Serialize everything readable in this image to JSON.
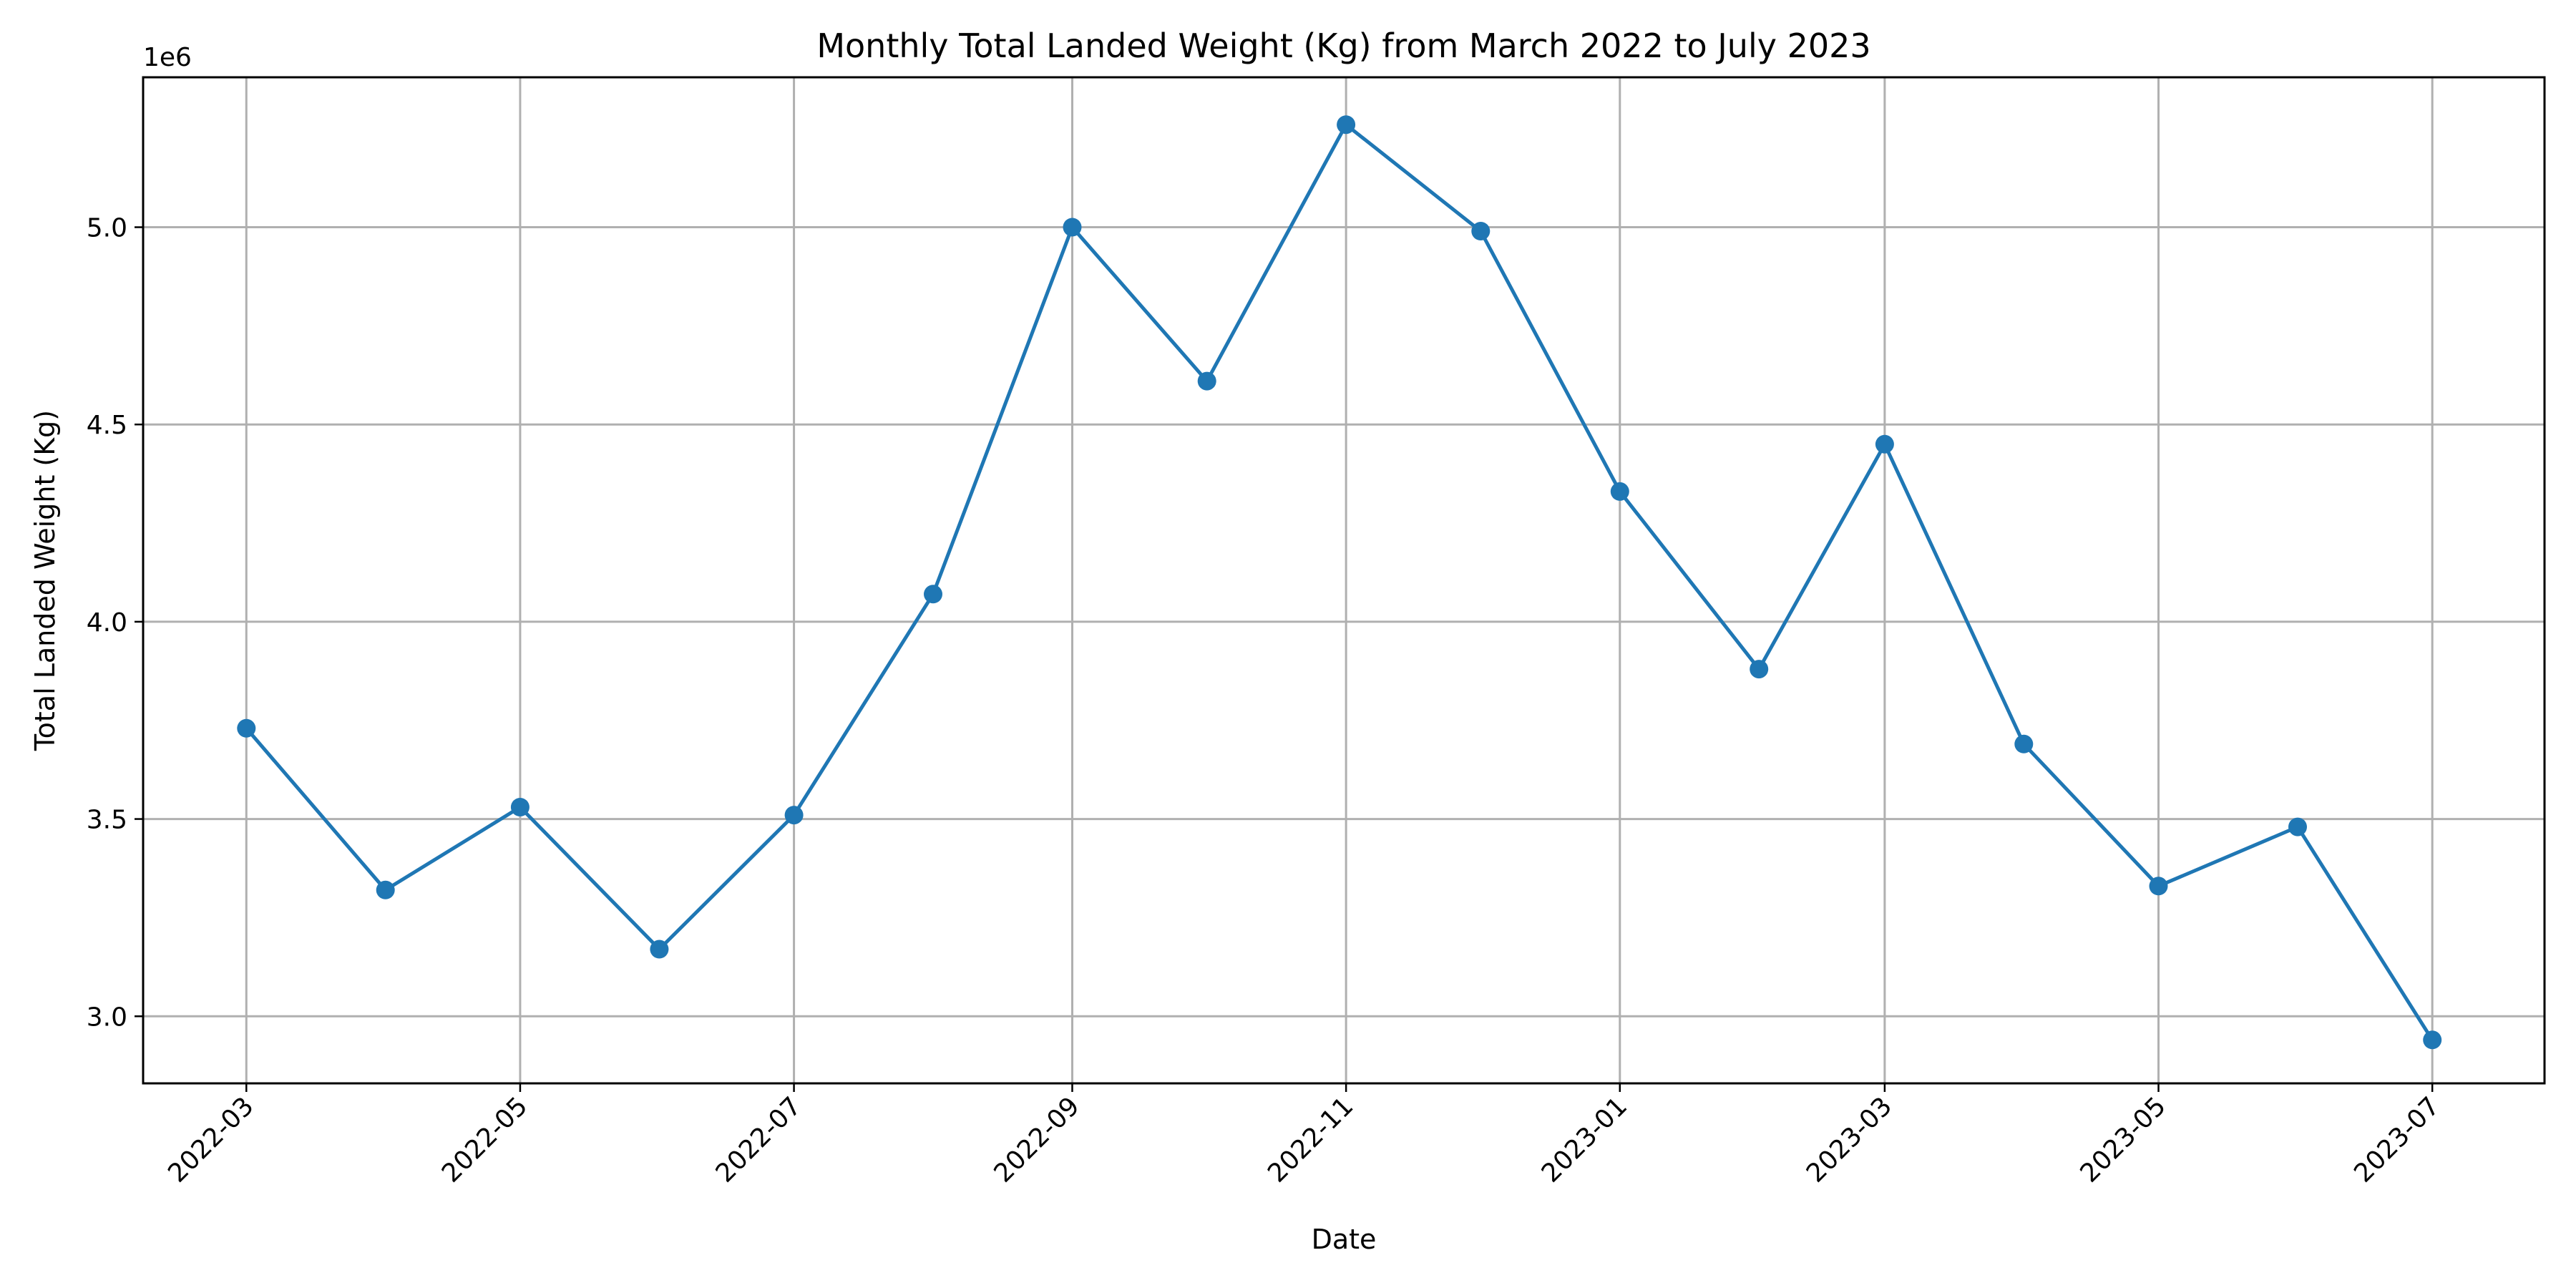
{
  "chart_data": {
    "type": "line",
    "title": "Monthly Total Landed Weight (Kg) from March 2022 to July 2023",
    "xlabel": "Date",
    "ylabel": "Total Landed Weight (Kg)",
    "y_offset_label": "1e6",
    "grid": true,
    "ylim": [
      2.83,
      5.38
    ],
    "xlim": [
      "2022-02-06",
      "2023-07-26"
    ],
    "x_ticks": [
      "2022-03",
      "2022-05",
      "2022-07",
      "2022-09",
      "2022-11",
      "2023-01",
      "2023-03",
      "2023-05",
      "2023-07"
    ],
    "y_ticks": [
      3.0,
      3.5,
      4.0,
      4.5,
      5.0
    ],
    "y_tick_labels": [
      "3.0",
      "3.5",
      "4.0",
      "4.5",
      "5.0"
    ],
    "series": [
      {
        "color": "#1f77b4",
        "marker": "circle",
        "x": [
          "2022-03-01",
          "2022-04-01",
          "2022-05-01",
          "2022-06-01",
          "2022-07-01",
          "2022-08-01",
          "2022-09-01",
          "2022-10-01",
          "2022-11-01",
          "2022-12-01",
          "2023-01-01",
          "2023-02-01",
          "2023-03-01",
          "2023-04-01",
          "2023-05-01",
          "2023-06-01",
          "2023-07-01"
        ],
        "y": [
          3.73,
          3.32,
          3.53,
          3.17,
          3.51,
          4.07,
          5.0,
          4.61,
          5.26,
          4.99,
          4.33,
          3.88,
          4.45,
          3.69,
          3.33,
          3.48,
          2.94
        ]
      }
    ]
  }
}
